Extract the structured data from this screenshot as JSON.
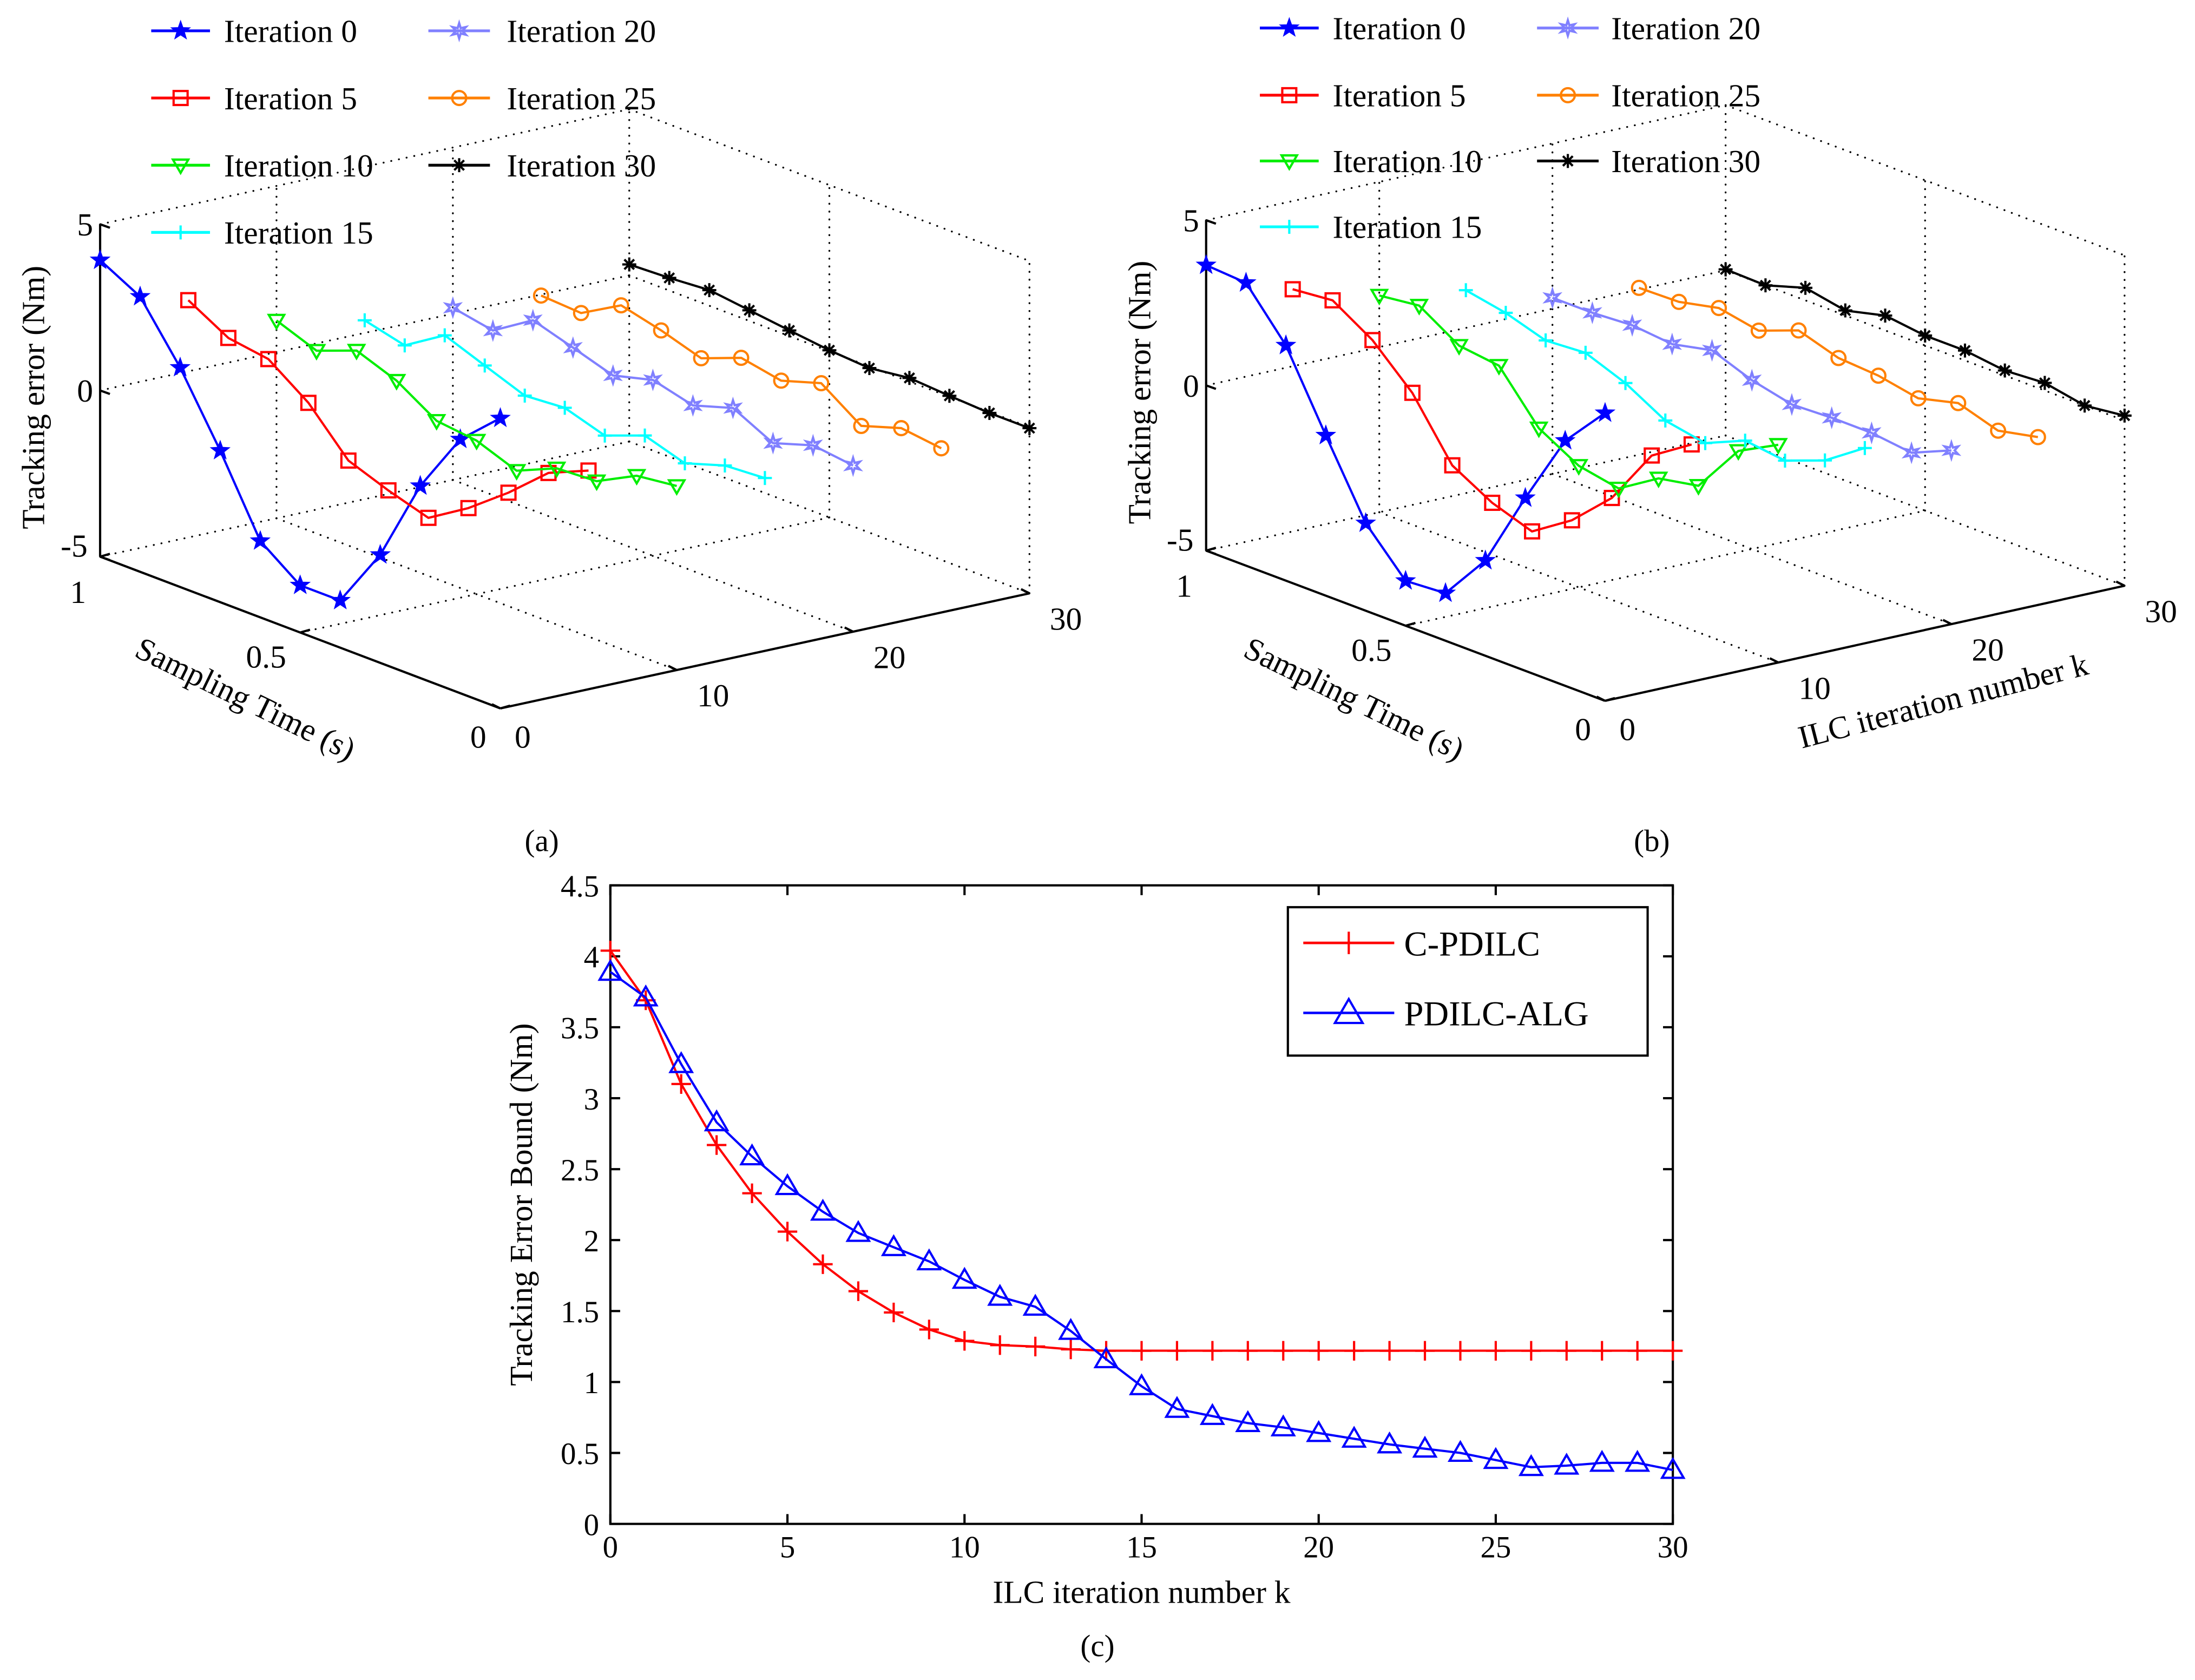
{
  "chart_data": [
    {
      "type": "line3d",
      "panel_label": "(a)",
      "xlabel": "Sampling Time (s)",
      "ylabel": "",
      "zlabel": "Tracking error (Nm)",
      "t_ticks": [
        "1",
        "0.5",
        "0"
      ],
      "k_ticks": [
        "0",
        "10",
        "20",
        "30"
      ],
      "e_ticks": [
        "5",
        "0",
        "-5"
      ],
      "t_range": [
        0,
        1
      ],
      "k_range": [
        0,
        30
      ],
      "e_range": [
        -5,
        5
      ],
      "t": [
        1,
        0.9,
        0.8,
        0.7,
        0.6,
        0.5,
        0.4,
        0.3,
        0.2,
        0.1,
        0
      ],
      "series": [
        {
          "name": "Iteration 0",
          "k": 0,
          "color": "#0000ff",
          "marker": "star",
          "values": [
            3.92,
            3.28,
            1.6,
            -0.44,
            -2.7,
            -3.58,
            -3.58,
            -1.75,
            0.78,
            2.64,
            3.73
          ]
        },
        {
          "name": "Iteration 5",
          "k": 5,
          "color": "#ff0000",
          "marker": "square",
          "values": [
            2.14,
            1.46,
            1.28,
            0.42,
            -0.86,
            -1.3,
            -1.67,
            -0.92,
            0.0,
            1.05,
            1.58
          ]
        },
        {
          "name": "Iteration 10",
          "k": 10,
          "color": "#00ee00",
          "marker": "triangle-down",
          "values": [
            0.95,
            0.5,
            0.96,
            0.51,
            -0.24,
            -0.38,
            -0.83,
            -0.3,
            -0.23,
            0.39,
            0.54
          ]
        },
        {
          "name": "Iteration 15",
          "k": 15,
          "color": "#00ffff",
          "marker": "plus",
          "values": [
            0.38,
            0.08,
            0.84,
            0.39,
            -0.06,
            0.03,
            -0.35,
            0.11,
            -0.27,
            0.12,
            0.2
          ]
        },
        {
          "name": "Iteration 20",
          "k": 20,
          "color": "#8080ff",
          "marker": "hexagram",
          "values": [
            0.18,
            -0.05,
            0.72,
            0.35,
            -0.03,
            0.29,
            -0.02,
            0.36,
            -0.24,
            0.15,
            0.0
          ]
        },
        {
          "name": "Iteration 25",
          "k": 25,
          "color": "#ff8000",
          "marker": "circle",
          "values": [
            -0.03,
            -0.1,
            0.59,
            0.29,
            -0.09,
            0.38,
            0.15,
            0.53,
            -0.3,
            0.09,
            -0.06
          ]
        },
        {
          "name": "Iteration 30",
          "k": 30,
          "color": "#000000",
          "marker": "asterisk",
          "values": [
            0.33,
            0.38,
            0.47,
            0.32,
            0.17,
            0.03,
            -0.05,
            0.11,
            0.03,
            -0.03,
            -0.03
          ]
        }
      ]
    },
    {
      "type": "line3d",
      "panel_label": "(b)",
      "xlabel": "Sampling Time (s)",
      "ylabel": "ILC iteration number k",
      "zlabel": "Tracking error (Nm)",
      "t_ticks": [
        "1",
        "0.5",
        "0"
      ],
      "k_ticks": [
        "0",
        "10",
        "20",
        "30"
      ],
      "e_ticks": [
        "5",
        "0",
        "-5"
      ],
      "t_range": [
        0,
        1
      ],
      "k_range": [
        0,
        30
      ],
      "e_range": [
        -5,
        5
      ],
      "t": [
        1,
        0.9,
        0.8,
        0.7,
        0.6,
        0.5,
        0.4,
        0.3,
        0.2,
        0.1,
        0
      ],
      "series": [
        {
          "name": "Iteration 0",
          "k": 0,
          "color": "#0000ff",
          "marker": "star",
          "values": [
            3.64,
            3.56,
            2.12,
            -0.15,
            -2.35,
            -3.64,
            -3.56,
            -2.12,
            0.23,
            2.42,
            3.71
          ]
        },
        {
          "name": "Iteration 5",
          "k": 5,
          "color": "#ff0000",
          "marker": "square",
          "values": [
            2.33,
            2.45,
            1.7,
            0.56,
            -1.18,
            -1.86,
            -2.27,
            -1.48,
            -0.35,
            1.39,
            2.18
          ]
        },
        {
          "name": "Iteration 10",
          "k": 10,
          "color": "#00ee00",
          "marker": "triangle-down",
          "values": [
            1.56,
            1.71,
            0.95,
            0.8,
            -0.64,
            -1.32,
            -1.55,
            -0.79,
            -0.56,
            0.95,
            1.59
          ]
        },
        {
          "name": "Iteration 15",
          "k": 15,
          "color": "#00ffff",
          "marker": "plus",
          "values": [
            1.14,
            0.91,
            0.53,
            0.61,
            0.15,
            -0.53,
            -0.76,
            -0.23,
            -0.38,
            0.08,
            0.91
          ]
        },
        {
          "name": "Iteration 20",
          "k": 20,
          "color": "#8080ff",
          "marker": "hexagram",
          "values": [
            0.33,
            0.33,
            0.41,
            0.29,
            0.56,
            0.11,
            -0.17,
            -0.12,
            -0.12,
            -0.27,
            0.26
          ]
        },
        {
          "name": "Iteration 25",
          "k": 25,
          "color": "#ff8000",
          "marker": "circle",
          "values": [
            0.05,
            0.08,
            0.35,
            0.12,
            0.58,
            0.2,
            0.12,
            -0.11,
            0.2,
            -0.18,
            0.08
          ]
        },
        {
          "name": "Iteration 30",
          "k": 30,
          "color": "#000000",
          "marker": "asterisk",
          "values": [
            0.03,
            0.0,
            0.38,
            0.15,
            0.45,
            0.3,
            0.3,
            0.15,
            0.23,
            0.0,
            0.15
          ]
        }
      ]
    },
    {
      "type": "line",
      "panel_label": "(c)",
      "xlabel": "ILC iteration number k",
      "ylabel": "Tracking Error Bound (Nm)",
      "xlim": [
        0,
        30
      ],
      "ylim": [
        0,
        4.5
      ],
      "x_ticks": [
        "0",
        "5",
        "10",
        "15",
        "20",
        "25",
        "30"
      ],
      "y_ticks": [
        "0",
        "0.5",
        "1",
        "1.5",
        "2",
        "2.5",
        "3",
        "3.5",
        "4",
        "4.5"
      ],
      "legend_position": "top-right",
      "grid": false,
      "x": [
        0,
        1,
        2,
        3,
        4,
        5,
        6,
        7,
        8,
        9,
        10,
        11,
        12,
        13,
        14,
        15,
        16,
        17,
        18,
        19,
        20,
        21,
        22,
        23,
        24,
        25,
        26,
        27,
        28,
        29,
        30
      ],
      "series": [
        {
          "name": "C-PDILC",
          "color": "#ff0000",
          "marker": "plus",
          "values": [
            4.04,
            3.69,
            3.1,
            2.67,
            2.33,
            2.06,
            1.83,
            1.64,
            1.49,
            1.37,
            1.29,
            1.26,
            1.25,
            1.23,
            1.22,
            1.22,
            1.22,
            1.22,
            1.22,
            1.22,
            1.22,
            1.22,
            1.22,
            1.22,
            1.22,
            1.22,
            1.22,
            1.22,
            1.22,
            1.22,
            1.22
          ]
        },
        {
          "name": "PDILC-ALG",
          "color": "#0000ff",
          "marker": "triangle-up",
          "values": [
            3.89,
            3.71,
            3.24,
            2.83,
            2.59,
            2.38,
            2.2,
            2.05,
            1.95,
            1.85,
            1.72,
            1.6,
            1.53,
            1.36,
            1.16,
            0.97,
            0.81,
            0.76,
            0.71,
            0.68,
            0.64,
            0.6,
            0.56,
            0.53,
            0.5,
            0.45,
            0.4,
            0.41,
            0.43,
            0.43,
            0.38
          ]
        }
      ]
    }
  ]
}
